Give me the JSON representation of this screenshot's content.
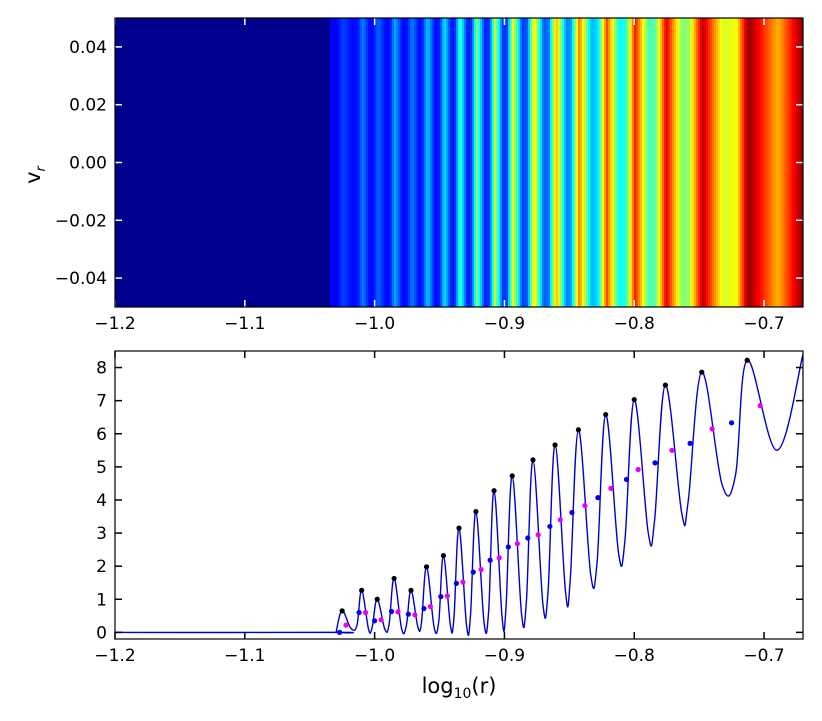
{
  "chart_data": [
    {
      "type": "heatmap",
      "title": "",
      "xlabel": "",
      "ylabel": "v",
      "ylabel_subscript": "r",
      "xlim": [
        -1.2,
        -0.67
      ],
      "ylim": [
        -0.05,
        0.05
      ],
      "xticks": [
        -1.2,
        -1.1,
        -1.0,
        -0.9,
        -0.8,
        -0.7
      ],
      "xtick_labels": [
        "−1.2",
        "−1.1",
        "−1.0",
        "−0.9",
        "−0.8",
        "−0.7"
      ],
      "yticks": [
        0.04,
        0.02,
        0.0,
        -0.02,
        -0.04
      ],
      "ytick_labels": [
        "0.04",
        "0.02",
        "0.00",
        "−0.02",
        "−0.04"
      ],
      "colormap": "jet",
      "background_color": "#00008f",
      "description_note": "vertical stripes independent of v_r; intensity follows the lower-panel profile"
    },
    {
      "type": "line",
      "title": "",
      "xlabel_base": "log",
      "xlabel_sub": "10",
      "xlabel_rest": "(r)",
      "ylabel": "",
      "xlim": [
        -1.2,
        -0.67
      ],
      "ylim": [
        -0.2,
        8.5
      ],
      "xticks": [
        -1.2,
        -1.1,
        -1.0,
        -0.9,
        -0.8,
        -0.7
      ],
      "xtick_labels": [
        "−1.2",
        "−1.1",
        "−1.0",
        "−0.9",
        "−0.8",
        "−0.7"
      ],
      "yticks": [
        0,
        1,
        2,
        3,
        4,
        5,
        6,
        7,
        8
      ],
      "ytick_labels": [
        "0",
        "1",
        "2",
        "3",
        "4",
        "5",
        "6",
        "7",
        "8"
      ],
      "line_color": "#0000cc",
      "flat_until": -1.03,
      "flat_value": 0.0,
      "end_point": [
        -0.67,
        8.4
      ],
      "oscillations": [
        {
          "peak_x": -1.025,
          "peak_y": 0.65,
          "trough_y": 0.0
        },
        {
          "peak_x": -1.01,
          "peak_y": 1.27,
          "trough_y": 0.12
        },
        {
          "peak_x": -0.998,
          "peak_y": 1.0,
          "trough_y": 0.08
        },
        {
          "peak_x": -0.985,
          "peak_y": 1.63,
          "trough_y": 0.1
        },
        {
          "peak_x": -0.972,
          "peak_y": 1.27,
          "trough_y": 0.1
        },
        {
          "peak_x": -0.96,
          "peak_y": 1.98,
          "trough_y": 0.15
        },
        {
          "peak_x": -0.947,
          "peak_y": 2.32,
          "trough_y": 0.15
        },
        {
          "peak_x": -0.935,
          "peak_y": 3.15,
          "trough_y": 0.2
        },
        {
          "peak_x": -0.922,
          "peak_y": 3.65,
          "trough_y": 0.2
        },
        {
          "peak_x": -0.908,
          "peak_y": 4.28,
          "trough_y": 0.3
        },
        {
          "peak_x": -0.894,
          "peak_y": 4.73,
          "trough_y": 0.4
        },
        {
          "peak_x": -0.878,
          "peak_y": 5.21,
          "trough_y": 0.55
        },
        {
          "peak_x": -0.861,
          "peak_y": 5.66,
          "trough_y": 0.85
        },
        {
          "peak_x": -0.843,
          "peak_y": 6.12,
          "trough_y": 1.2
        },
        {
          "peak_x": -0.822,
          "peak_y": 6.58,
          "trough_y": 1.75
        },
        {
          "peak_x": -0.8,
          "peak_y": 7.03,
          "trough_y": 2.4
        },
        {
          "peak_x": -0.776,
          "peak_y": 7.47,
          "trough_y": 3.0
        },
        {
          "peak_x": -0.748,
          "peak_y": 7.86,
          "trough_y": 3.6
        },
        {
          "peak_x": -0.713,
          "peak_y": 8.22,
          "trough_y": 4.45
        }
      ],
      "final_trough": {
        "x": -0.69,
        "y": 5.5
      },
      "series": [
        {
          "name": "black markers",
          "color": "#000000",
          "x": [
            -1.025,
            -1.01,
            -0.998,
            -0.985,
            -0.972,
            -0.96,
            -0.947,
            -0.935,
            -0.922,
            -0.908,
            -0.894,
            -0.878,
            -0.861,
            -0.843,
            -0.822,
            -0.8,
            -0.776,
            -0.748,
            -0.713
          ],
          "y": [
            0.65,
            1.27,
            1.0,
            1.63,
            1.27,
            1.98,
            2.32,
            3.15,
            3.65,
            4.28,
            4.73,
            5.21,
            5.66,
            6.12,
            6.58,
            7.03,
            7.47,
            7.86,
            8.22
          ]
        },
        {
          "name": "blue markers",
          "color": "#0000ee",
          "x": [
            -1.027,
            -1.012,
            -1.0,
            -0.987,
            -0.974,
            -0.962,
            -0.949,
            -0.937,
            -0.924,
            -0.911,
            -0.897,
            -0.882,
            -0.865,
            -0.848,
            -0.828,
            -0.806,
            -0.784,
            -0.757,
            -0.725
          ],
          "y": [
            0.0,
            0.6,
            0.35,
            0.63,
            0.55,
            0.72,
            1.08,
            1.48,
            1.82,
            2.18,
            2.58,
            2.85,
            3.2,
            3.62,
            4.07,
            4.62,
            5.12,
            5.71,
            6.33
          ]
        },
        {
          "name": "magenta markers",
          "color": "#ee00ee",
          "x": [
            -1.022,
            -1.007,
            -0.995,
            -0.982,
            -0.969,
            -0.957,
            -0.944,
            -0.932,
            -0.918,
            -0.904,
            -0.89,
            -0.874,
            -0.857,
            -0.838,
            -0.818,
            -0.797,
            -0.771,
            -0.74,
            -0.703
          ],
          "y": [
            0.22,
            0.6,
            0.38,
            0.62,
            0.53,
            0.78,
            1.1,
            1.52,
            1.9,
            2.25,
            2.68,
            2.95,
            3.4,
            3.83,
            4.35,
            4.92,
            5.5,
            6.15,
            6.85
          ]
        }
      ]
    }
  ]
}
